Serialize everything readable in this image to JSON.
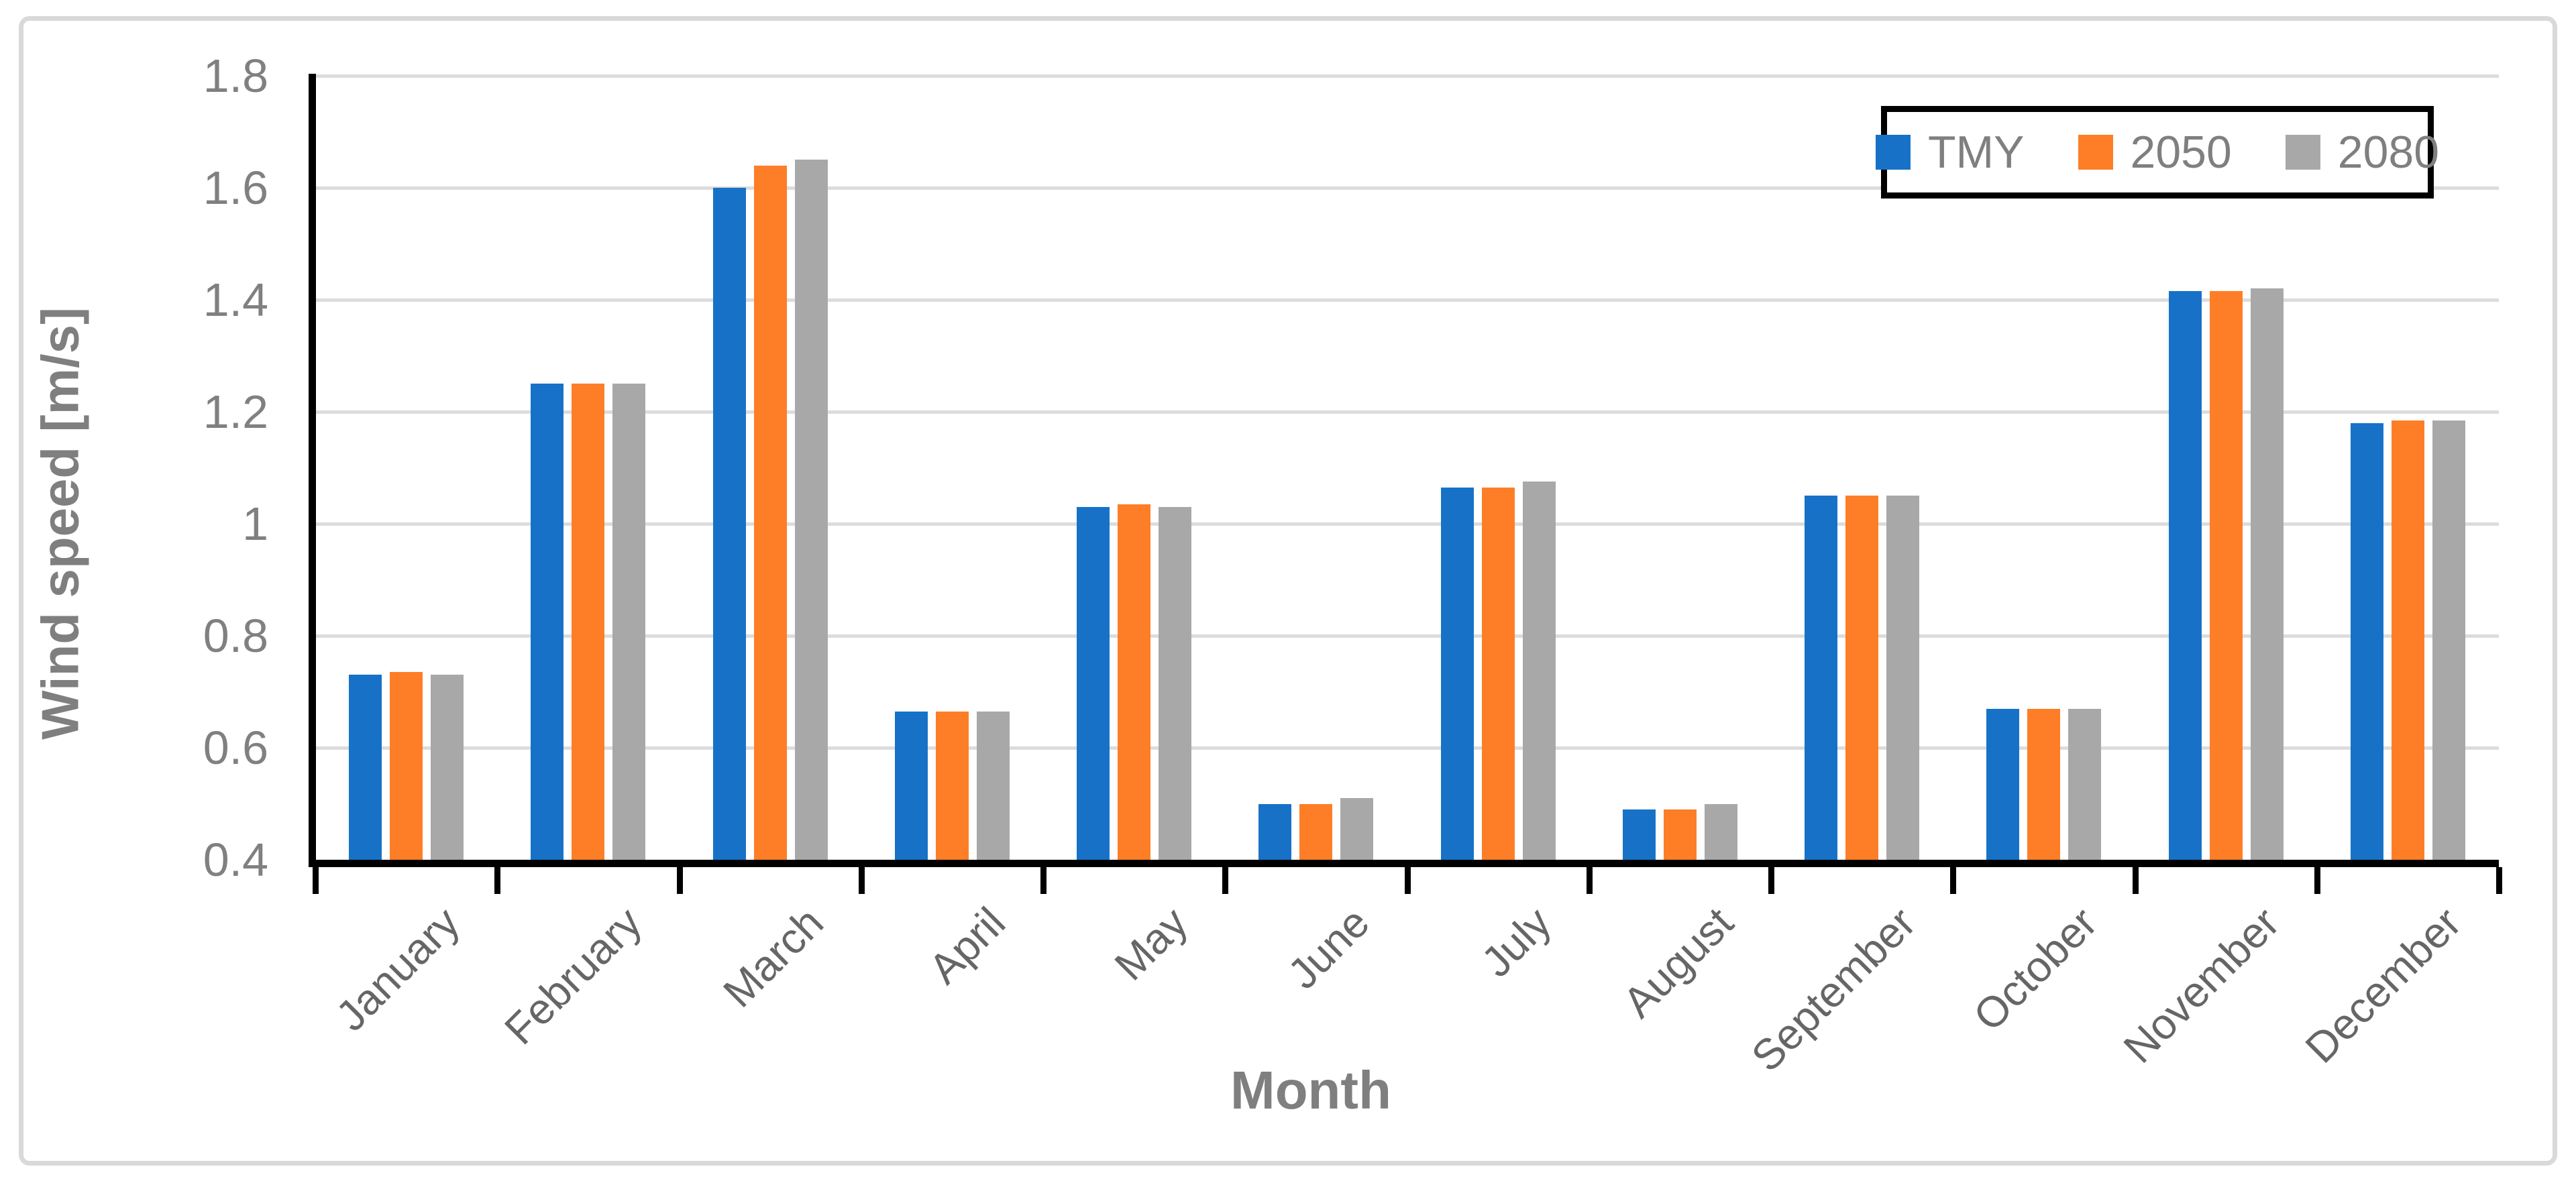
{
  "chart_data": {
    "type": "bar",
    "title": "",
    "xlabel": "Month",
    "ylabel": "Wind speed [m/s]",
    "ylim": [
      0.4,
      1.8
    ],
    "y_tick_step": 0.2,
    "y_tick_labels": [
      "0.4",
      "0.6",
      "0.8",
      "1",
      "1.2",
      "1.4",
      "1.6",
      "1.8"
    ],
    "grid": true,
    "legend_position": "top-right",
    "categories": [
      "January",
      "February",
      "March",
      "April",
      "May",
      "June",
      "July",
      "August",
      "September",
      "October",
      "November",
      "December"
    ],
    "series": [
      {
        "name": "TMY",
        "color": "#1772C7",
        "values": [
          0.73,
          1.25,
          1.6,
          0.665,
          1.03,
          0.5,
          1.065,
          0.49,
          1.05,
          0.67,
          1.415,
          1.18
        ]
      },
      {
        "name": "2050",
        "color": "#FD7E27",
        "values": [
          0.735,
          1.25,
          1.64,
          0.665,
          1.035,
          0.5,
          1.065,
          0.49,
          1.05,
          0.67,
          1.415,
          1.185
        ]
      },
      {
        "name": "2080",
        "color": "#A8A8A8",
        "values": [
          0.73,
          1.25,
          1.65,
          0.665,
          1.03,
          0.51,
          1.075,
          0.5,
          1.05,
          0.67,
          1.42,
          1.185
        ]
      }
    ],
    "colors": {
      "gridline": "#DCDCDC",
      "axis_line": "#000000",
      "tick_text": "#808080",
      "category_text": "#666666",
      "title_text": "#7F7F7F",
      "figure_border": "#D9D9D9"
    }
  }
}
